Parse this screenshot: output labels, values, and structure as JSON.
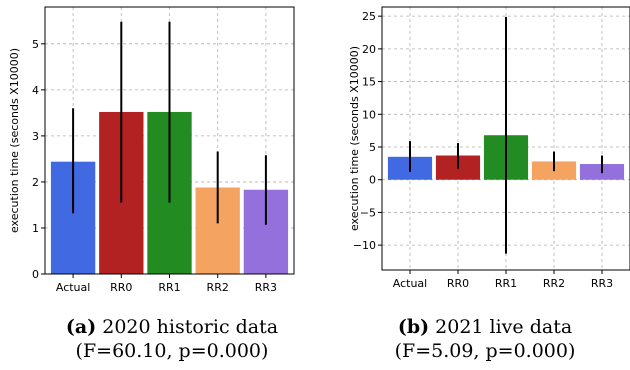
{
  "chart_data": [
    {
      "type": "bar",
      "ylabel": "execution time (seconds X10000)",
      "categories": [
        "Actual",
        "RR0",
        "RR1",
        "RR2",
        "RR3"
      ],
      "values": [
        2.44,
        3.52,
        3.52,
        1.88,
        1.83
      ],
      "error_low": [
        1.32,
        1.55,
        1.55,
        1.1,
        1.07
      ],
      "error_high": [
        3.6,
        5.48,
        5.48,
        2.66,
        2.58
      ],
      "colors": [
        "#4169e1",
        "#b22222",
        "#228b22",
        "#f4a460",
        "#9370db"
      ],
      "ylim": [
        0,
        5.8
      ],
      "yticks": [
        0,
        1,
        2,
        3,
        4,
        5
      ],
      "grid": true,
      "caption": {
        "label": "(a)",
        "title": "2020 historic data",
        "stats": "(F=60.10, p=0.000)"
      }
    },
    {
      "type": "bar",
      "ylabel": "execution time (seconds X10000)",
      "categories": [
        "Actual",
        "RR0",
        "RR1",
        "RR2",
        "RR3"
      ],
      "values": [
        3.5,
        3.7,
        6.8,
        2.8,
        2.4
      ],
      "error_low": [
        1.2,
        1.7,
        -11.3,
        1.3,
        1.0
      ],
      "error_high": [
        5.9,
        5.6,
        24.9,
        4.3,
        3.7
      ],
      "colors": [
        "#4169e1",
        "#b22222",
        "#228b22",
        "#f4a460",
        "#9370db"
      ],
      "ylim": [
        -13.8,
        26.4
      ],
      "yticks": [
        -10,
        -5,
        0,
        5,
        10,
        15,
        20,
        25
      ],
      "grid": true,
      "caption": {
        "label": "(b)",
        "title": "2021 live data",
        "stats": "(F=5.09, p=0.000)"
      }
    }
  ]
}
